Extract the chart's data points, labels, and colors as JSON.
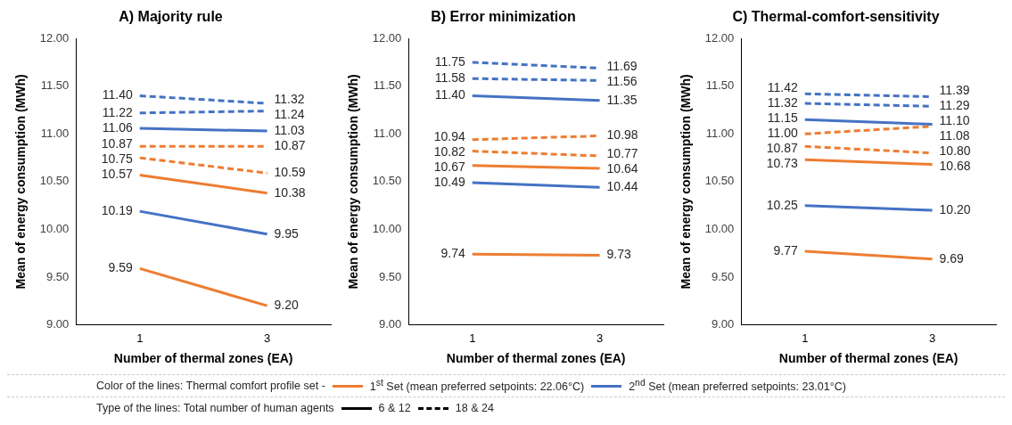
{
  "chart_data": [
    {
      "type": "line",
      "title": "A) Majority rule",
      "xlabel": "Number of thermal zones (EA)",
      "ylabel": "Mean of energy consumption (MWh)",
      "categories": [
        "1",
        "3"
      ],
      "ylim": [
        9,
        12
      ],
      "yticks": [
        {
          "value": 9,
          "label": "9.00"
        },
        {
          "value": 9.5,
          "label": "9.50"
        },
        {
          "value": 10,
          "label": "10.00"
        },
        {
          "value": 10.5,
          "label": "10.50"
        },
        {
          "value": 11,
          "label": "11.00"
        },
        {
          "value": 11.5,
          "label": "11.50"
        },
        {
          "value": 12,
          "label": "12.00"
        }
      ],
      "grid": false,
      "legend": false,
      "series": [
        {
          "color": "#ed7d31",
          "line_style": "solid",
          "values": [
            9.59,
            9.2
          ],
          "value_labels": [
            "9.59",
            "9.20"
          ]
        },
        {
          "color": "#4472c4",
          "line_style": "solid",
          "values": [
            10.19,
            9.95
          ],
          "value_labels": [
            "10.19",
            "9.95"
          ]
        },
        {
          "color": "#ed7d31",
          "line_style": "solid",
          "values": [
            10.57,
            10.38
          ],
          "value_labels": [
            "10.57",
            "10.38"
          ]
        },
        {
          "color": "#ed7d31",
          "line_style": "dashed",
          "values": [
            10.75,
            10.59
          ],
          "value_labels": [
            "10.75",
            "10.59"
          ]
        },
        {
          "color": "#ed7d31",
          "line_style": "dashed",
          "values": [
            10.87,
            10.87
          ],
          "value_labels": [
            "10.87",
            "10.87"
          ]
        },
        {
          "color": "#4472c4",
          "line_style": "solid",
          "values": [
            11.06,
            11.03
          ],
          "value_labels": [
            "11.06",
            "11.03"
          ]
        },
        {
          "color": "#4472c4",
          "line_style": "dashed",
          "values": [
            11.22,
            11.24
          ],
          "value_labels": [
            "11.22",
            "11.24"
          ]
        },
        {
          "color": "#4472c4",
          "line_style": "dashed",
          "values": [
            11.4,
            11.32
          ],
          "value_labels": [
            "11.40",
            "11.32"
          ]
        }
      ]
    },
    {
      "type": "line",
      "title": "B) Error minimization",
      "xlabel": "Number of thermal zones (EA)",
      "ylabel": "Mean of energy consumption (MWh)",
      "categories": [
        "1",
        "3"
      ],
      "ylim": [
        9,
        12
      ],
      "yticks": [
        {
          "value": 9,
          "label": "9.00"
        },
        {
          "value": 9.5,
          "label": "9.50"
        },
        {
          "value": 10,
          "label": "10.00"
        },
        {
          "value": 10.5,
          "label": "10.50"
        },
        {
          "value": 11,
          "label": "11.00"
        },
        {
          "value": 11.5,
          "label": "11.50"
        },
        {
          "value": 12,
          "label": "12.00"
        }
      ],
      "grid": false,
      "legend": false,
      "series": [
        {
          "color": "#ed7d31",
          "line_style": "solid",
          "values": [
            9.74,
            9.73
          ],
          "value_labels": [
            "9.74",
            "9.73"
          ]
        },
        {
          "color": "#4472c4",
          "line_style": "solid",
          "values": [
            10.49,
            10.44
          ],
          "value_labels": [
            "10.49",
            "10.44"
          ]
        },
        {
          "color": "#ed7d31",
          "line_style": "solid",
          "values": [
            10.67,
            10.64
          ],
          "value_labels": [
            "10.67",
            "10.64"
          ]
        },
        {
          "color": "#ed7d31",
          "line_style": "dashed",
          "values": [
            10.82,
            10.77
          ],
          "value_labels": [
            "10.82",
            "10.77"
          ]
        },
        {
          "color": "#ed7d31",
          "line_style": "dashed",
          "values": [
            10.94,
            10.98
          ],
          "value_labels": [
            "10.94",
            "10.98"
          ]
        },
        {
          "color": "#4472c4",
          "line_style": "solid",
          "values": [
            11.4,
            11.35
          ],
          "value_labels": [
            "11.40",
            "11.35"
          ]
        },
        {
          "color": "#4472c4",
          "line_style": "dashed",
          "values": [
            11.58,
            11.56
          ],
          "value_labels": [
            "11.58",
            "11.56"
          ]
        },
        {
          "color": "#4472c4",
          "line_style": "dashed",
          "values": [
            11.75,
            11.69
          ],
          "value_labels": [
            "11.75",
            "11.69"
          ]
        }
      ]
    },
    {
      "type": "line",
      "title": "C) Thermal-comfort-sensitivity",
      "xlabel": "Number of thermal zones (EA)",
      "ylabel": "Mean of energy consumption (MWh)",
      "categories": [
        "1",
        "3"
      ],
      "ylim": [
        9,
        12
      ],
      "yticks": [
        {
          "value": 9,
          "label": "9.00"
        },
        {
          "value": 9.5,
          "label": "9.50"
        },
        {
          "value": 10,
          "label": "10.00"
        },
        {
          "value": 10.5,
          "label": "10.50"
        },
        {
          "value": 11,
          "label": "11.00"
        },
        {
          "value": 11.5,
          "label": "11.50"
        },
        {
          "value": 12,
          "label": "12.00"
        }
      ],
      "grid": false,
      "legend": false,
      "series": [
        {
          "color": "#ed7d31",
          "line_style": "solid",
          "values": [
            9.77,
            9.69
          ],
          "value_labels": [
            "9.77",
            "9.69"
          ]
        },
        {
          "color": "#4472c4",
          "line_style": "solid",
          "values": [
            10.25,
            10.2
          ],
          "value_labels": [
            "10.25",
            "10.20"
          ]
        },
        {
          "color": "#ed7d31",
          "line_style": "solid",
          "values": [
            10.73,
            10.68
          ],
          "value_labels": [
            "10.73",
            "10.68"
          ]
        },
        {
          "color": "#ed7d31",
          "line_style": "dashed",
          "values": [
            10.87,
            10.8
          ],
          "value_labels": [
            "10.87",
            "10.80"
          ]
        },
        {
          "color": "#ed7d31",
          "line_style": "dashed",
          "values": [
            11.0,
            11.08
          ],
          "value_labels": [
            "11.00",
            "11.08"
          ]
        },
        {
          "color": "#4472c4",
          "line_style": "solid",
          "values": [
            11.15,
            11.1
          ],
          "value_labels": [
            "11.15",
            "11.10"
          ]
        },
        {
          "color": "#4472c4",
          "line_style": "dashed",
          "values": [
            11.32,
            11.29
          ],
          "value_labels": [
            "11.32",
            "11.29"
          ]
        },
        {
          "color": "#4472c4",
          "line_style": "dashed",
          "values": [
            11.42,
            11.39
          ],
          "value_labels": [
            "11.42",
            "11.39"
          ]
        }
      ]
    },
    {
      "type": "other",
      "annotations": [
        "Color of the lines: Thermal comfort profile set -",
        "1$^{st}$ Set (mean preferred setpoints: 22.06°C)",
        "2$^{nd}$ Set (mean preferred setpoints: 23.01°C)",
        "Type of the lines: Total number of human agents",
        "6 & 12",
        "18 & 24"
      ]
    }
  ]
}
